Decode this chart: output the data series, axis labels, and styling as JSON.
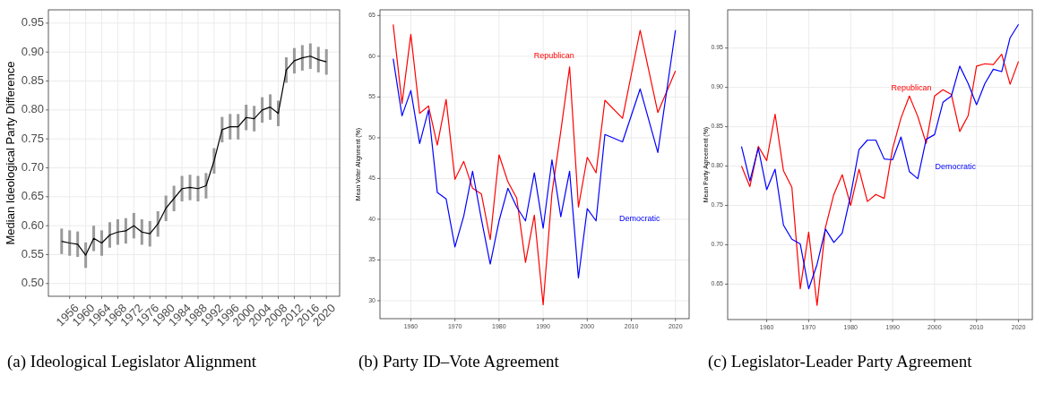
{
  "chart_data": [
    {
      "type": "line",
      "title": "(a) Ideological Legislator Alignment",
      "ylabel": "Median Ideological Party Difference",
      "x": [
        1954,
        1956,
        1958,
        1960,
        1962,
        1964,
        1966,
        1968,
        1970,
        1972,
        1974,
        1976,
        1978,
        1980,
        1982,
        1984,
        1986,
        1988,
        1990,
        1992,
        1994,
        1996,
        1998,
        2000,
        2002,
        2004,
        2006,
        2008,
        2010,
        2012,
        2014,
        2016,
        2018,
        2020
      ],
      "values": [
        0.573,
        0.57,
        0.568,
        0.549,
        0.578,
        0.57,
        0.584,
        0.589,
        0.591,
        0.6,
        0.589,
        0.586,
        0.603,
        0.63,
        0.647,
        0.664,
        0.666,
        0.664,
        0.669,
        0.712,
        0.766,
        0.771,
        0.771,
        0.787,
        0.785,
        0.8,
        0.805,
        0.794,
        0.869,
        0.885,
        0.89,
        0.893,
        0.887,
        0.883
      ],
      "errors": [
        0.022,
        0.022,
        0.022,
        0.022,
        0.022,
        0.022,
        0.022,
        0.022,
        0.022,
        0.022,
        0.022,
        0.022,
        0.022,
        0.022,
        0.022,
        0.022,
        0.022,
        0.022,
        0.022,
        0.022,
        0.022,
        0.022,
        0.022,
        0.022,
        0.022,
        0.022,
        0.022,
        0.022,
        0.022,
        0.022,
        0.022,
        0.022,
        0.022,
        0.022
      ],
      "color": "#000000",
      "xlim": [
        1950.7,
        2023.3
      ],
      "xticks": [
        1956,
        1960,
        1964,
        1968,
        1972,
        1976,
        1980,
        1984,
        1988,
        1992,
        1996,
        2000,
        2004,
        2008,
        2012,
        2016,
        2020
      ],
      "ylim": [
        0.478,
        0.973
      ],
      "yticks": [
        {
          "value": 0.5,
          "label": "0.50"
        },
        0.55,
        {
          "value": 0.6,
          "label": "0.60"
        },
        0.65,
        {
          "value": 0.7,
          "label": "0.70"
        },
        0.75,
        {
          "value": 0.8,
          "label": "0.80"
        },
        0.85,
        {
          "value": 0.9,
          "label": "0.90"
        },
        0.95
      ],
      "grid": true
    },
    {
      "type": "line",
      "title": "(b) Party ID–Vote Agreement",
      "ylabel": "Mean Voter Alignment (%)",
      "x": [
        1956,
        1958,
        1960,
        1962,
        1964,
        1966,
        1968,
        1970,
        1972,
        1974,
        1976,
        1978,
        1980,
        1982,
        1984,
        1986,
        1988,
        1990,
        1992,
        1994,
        1996,
        1998,
        2000,
        2002,
        2004,
        2008,
        2012,
        2016,
        2020
      ],
      "series": [
        {
          "name": "Republican",
          "color": "#ff0000",
          "values": [
            63.9,
            54.2,
            62.7,
            53.0,
            53.9,
            49.1,
            54.7,
            44.9,
            47.1,
            43.8,
            43.1,
            37.5,
            47.9,
            44.6,
            42.6,
            34.7,
            40.5,
            29.5,
            43.2,
            50.8,
            58.7,
            41.5,
            47.6,
            45.7,
            54.6,
            52.4,
            63.2,
            53.1,
            58.2
          ]
        },
        {
          "name": "Democratic",
          "color": "#0000ff",
          "values": [
            59.7,
            52.7,
            55.8,
            49.3,
            53.4,
            43.3,
            42.5,
            36.6,
            40.4,
            45.9,
            40.0,
            34.5,
            39.8,
            43.8,
            41.5,
            39.8,
            45.7,
            38.9,
            47.3,
            40.3,
            45.9,
            32.8,
            41.3,
            39.8,
            50.4,
            49.5,
            56.0,
            48.2,
            63.2
          ]
        }
      ],
      "xlim": [
        1953,
        2023.1
      ],
      "xticks": [
        1960,
        1970,
        1980,
        1990,
        2000,
        2010,
        2020
      ],
      "ylim": [
        27.8,
        65.7
      ],
      "yticks": [
        30,
        35,
        40,
        45,
        50,
        55,
        60,
        65
      ],
      "grid": true
    },
    {
      "type": "line",
      "title": "(c) Legislator-Leader Party Agreement",
      "ylabel": "Mean Party Agreement (%)",
      "x": [
        1954,
        1956,
        1958,
        1960,
        1962,
        1964,
        1966,
        1968,
        1970,
        1972,
        1974,
        1976,
        1978,
        1980,
        1982,
        1984,
        1986,
        1988,
        1990,
        1992,
        1994,
        1996,
        1998,
        2000,
        2002,
        2004,
        2006,
        2008,
        2010,
        2012,
        2014,
        2016,
        2018,
        2020
      ],
      "series": [
        {
          "name": "Republican",
          "color": "#ff0000",
          "values": [
            0.8,
            0.774,
            0.825,
            0.807,
            0.866,
            0.794,
            0.773,
            0.644,
            0.716,
            0.623,
            0.722,
            0.764,
            0.789,
            0.75,
            0.796,
            0.755,
            0.764,
            0.759,
            0.822,
            0.861,
            0.889,
            0.863,
            0.829,
            0.889,
            0.897,
            0.891,
            0.844,
            0.864,
            0.927,
            0.93,
            0.929,
            0.942,
            0.904,
            0.933
          ]
        },
        {
          "name": "Democratic",
          "color": "#0000ff",
          "values": [
            0.825,
            0.781,
            0.823,
            0.77,
            0.796,
            0.725,
            0.707,
            0.701,
            0.644,
            0.675,
            0.72,
            0.703,
            0.715,
            0.763,
            0.821,
            0.833,
            0.833,
            0.809,
            0.808,
            0.837,
            0.793,
            0.784,
            0.834,
            0.84,
            0.881,
            0.889,
            0.927,
            0.905,
            0.878,
            0.905,
            0.923,
            0.92,
            0.963,
            0.98
          ]
        }
      ],
      "xlim": [
        1950.7,
        2023.3
      ],
      "xticks": [
        1960,
        1970,
        1980,
        1990,
        2000,
        2010,
        2020
      ],
      "ylim": [
        0.605,
        0.9985
      ],
      "yticks": [
        {
          "value": 0.65,
          "label": "0.65"
        },
        {
          "value": 0.7,
          "label": "0.70"
        },
        {
          "value": 0.75,
          "label": "0.75"
        },
        {
          "value": 0.8,
          "label": "0.80"
        },
        {
          "value": 0.85,
          "label": "0.85"
        },
        {
          "value": 0.9,
          "label": "0.90"
        },
        {
          "value": 0.95,
          "label": "0.95"
        }
      ],
      "grid": true
    }
  ]
}
